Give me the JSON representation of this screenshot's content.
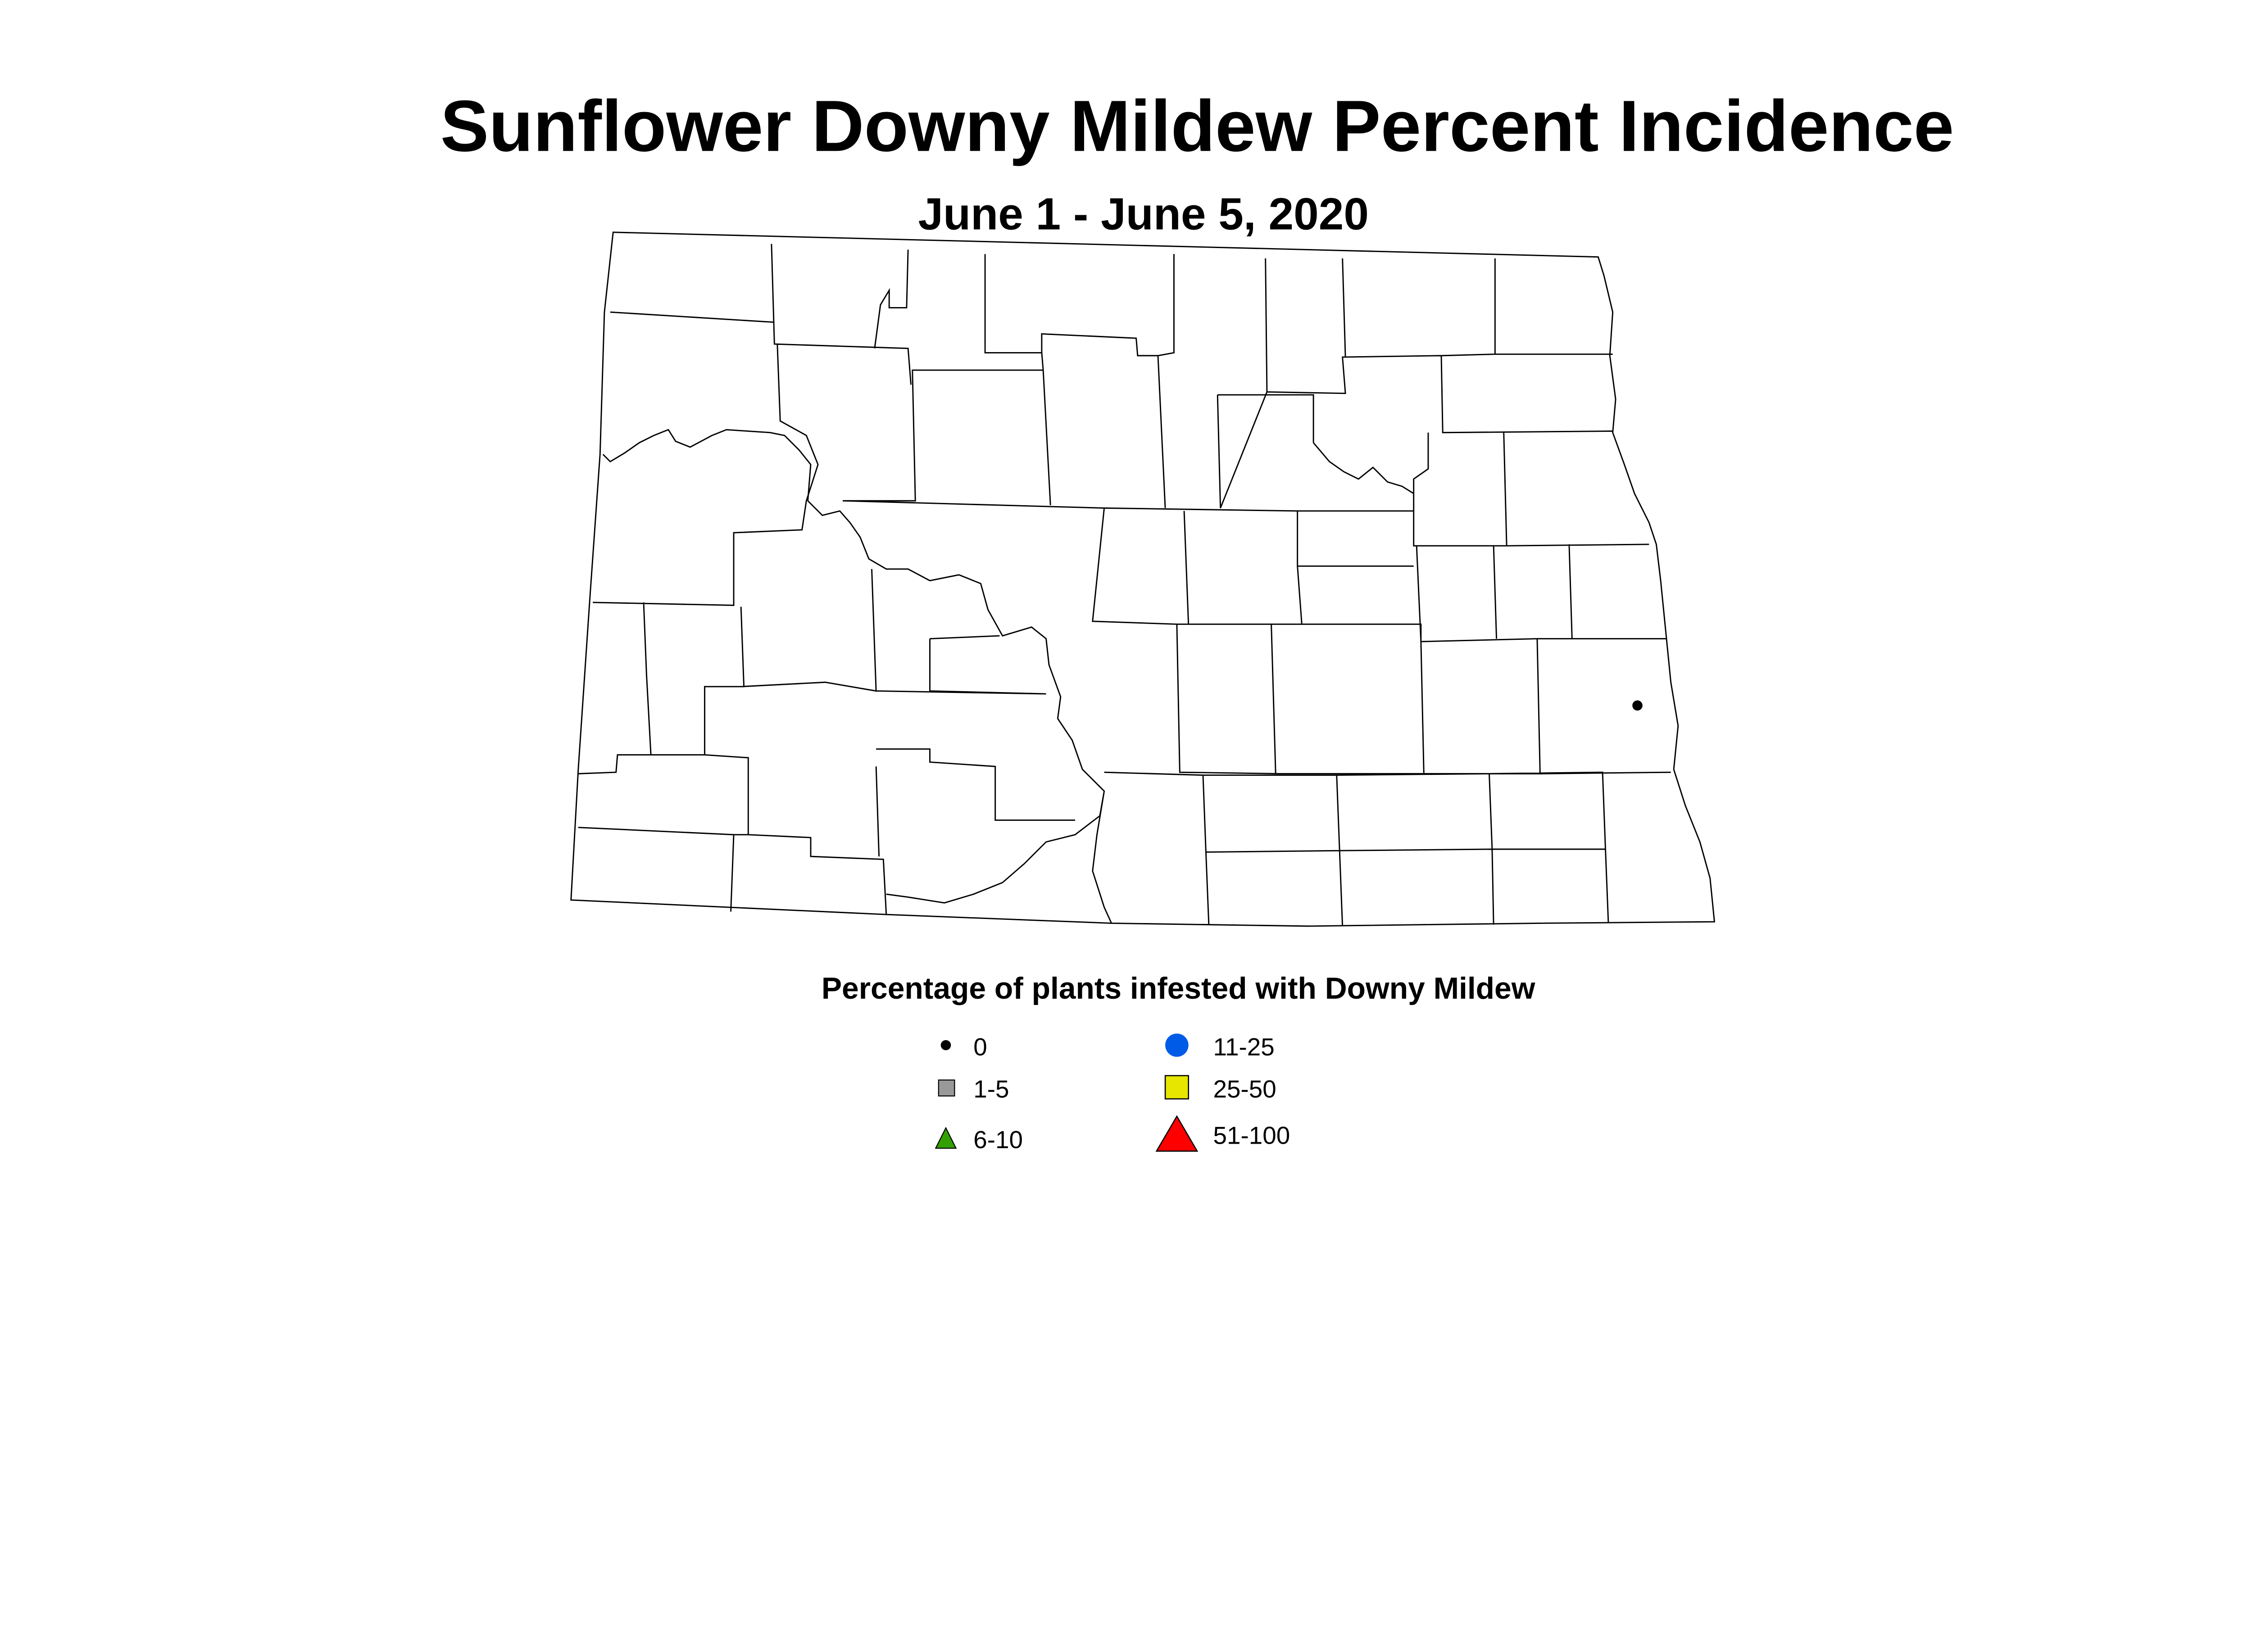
{
  "title": "Sunflower Downy Mildew Percent Incidence",
  "subtitle": "June 1 - June 5, 2020",
  "legend": {
    "title": "Percentage of plants infested with Downy Mildew",
    "items": [
      {
        "label": "0",
        "shape": "circle",
        "color": "#000000"
      },
      {
        "label": "1-5",
        "shape": "square",
        "color": "#999999"
      },
      {
        "label": "6-10",
        "shape": "triangle",
        "color": "#33a000"
      },
      {
        "label": "11-25",
        "shape": "circle",
        "color": "#005ce6"
      },
      {
        "label": "25-50",
        "shape": "square",
        "color": "#e6e600"
      },
      {
        "label": "51-100",
        "shape": "triangle",
        "color": "#ff0000"
      }
    ]
  },
  "observations": [
    {
      "category": "0",
      "location": "eastern North Dakota (Cass County area)"
    }
  ]
}
